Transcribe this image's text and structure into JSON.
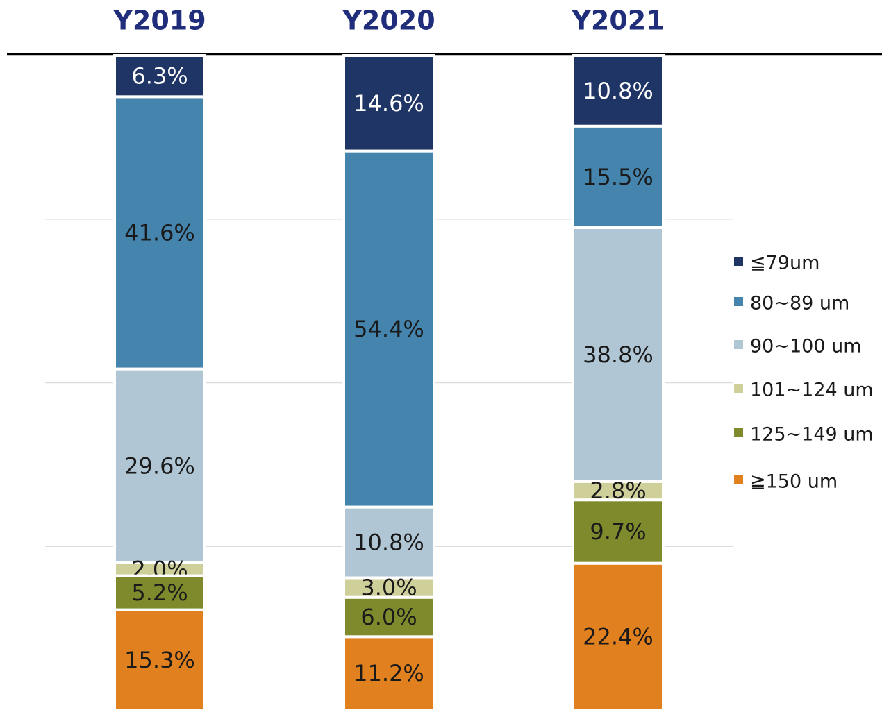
{
  "chart_data": {
    "type": "stacked_bar",
    "categories": [
      "Y2019",
      "Y2020",
      "Y2021"
    ],
    "series": [
      {
        "name": "≦79um",
        "color": "#1f3566",
        "values": [
          6.3,
          14.6,
          10.8
        ],
        "value_labels": [
          "6.3%",
          "14.6%",
          "10.8%"
        ]
      },
      {
        "name": "80~89 um",
        "color": "#4484ad",
        "values": [
          41.6,
          54.4,
          15.5
        ],
        "value_labels": [
          "41.6%",
          "54.4%",
          "15.5%"
        ]
      },
      {
        "name": "90~100 um",
        "color": "#b0c6d4",
        "values": [
          29.6,
          10.8,
          38.8
        ],
        "value_labels": [
          "29.6%",
          "10.8%",
          "38.8%"
        ]
      },
      {
        "name": "101~124 um",
        "color": "#cfcf9a",
        "values": [
          2.0,
          3.0,
          2.8
        ],
        "value_labels": [
          "2.0%",
          "3.0%",
          "2.8%"
        ]
      },
      {
        "name": "125~149 um",
        "color": "#7f8a2d",
        "values": [
          5.2,
          6.0,
          9.7
        ],
        "value_labels": [
          "5.2%",
          "6.0%",
          "9.7%"
        ]
      },
      {
        "name": "≧150 um",
        "color": "#e0801f",
        "values": [
          15.3,
          11.2,
          22.4
        ],
        "value_labels": [
          "15.3%",
          "11.2%",
          "22.4%"
        ]
      }
    ],
    "ylim": [
      0,
      100
    ],
    "yticks": [
      25,
      50,
      75
    ],
    "grid": true,
    "legend": "right"
  }
}
